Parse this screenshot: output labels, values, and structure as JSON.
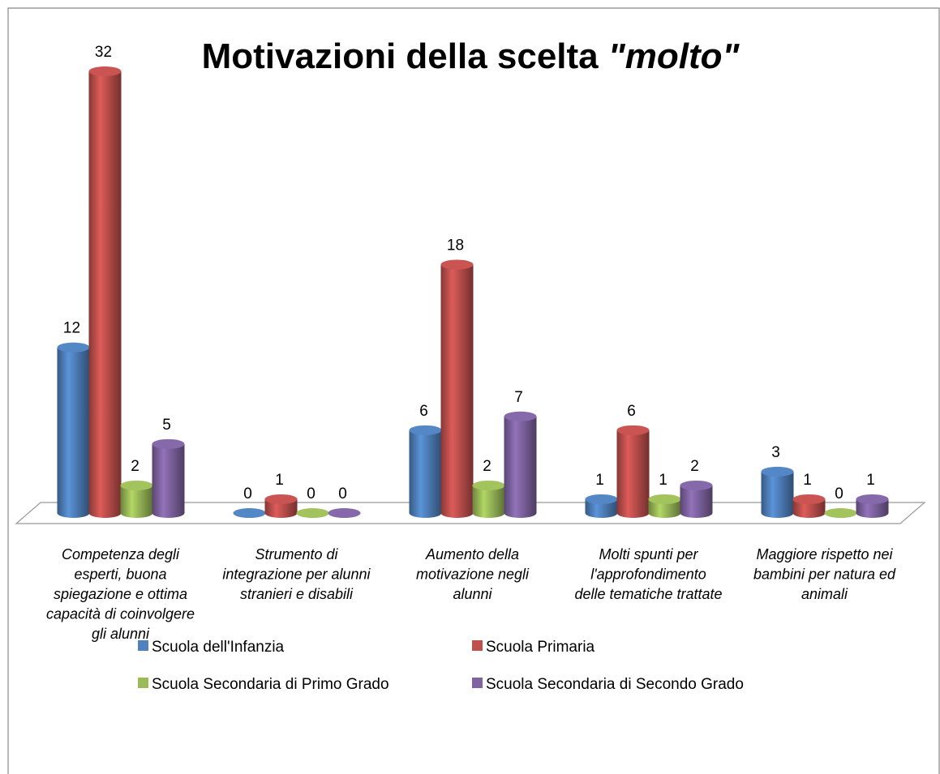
{
  "chart_data": {
    "type": "bar",
    "title": "Motivazioni della scelta \"molto\"",
    "categories": [
      "Competenza degli esperti, buona spiegazione e ottima capacità di coinvolgere gli alunni",
      "Strumento di integrazione  per alunni stranieri e disabili",
      "Aumento della motivazione negli alunni",
      "Molti spunti per l'approfondimento delle tematiche trattate",
      "Maggiore rispetto nei bambini per natura ed animali"
    ],
    "series": [
      {
        "name": "Scuola dell'Infanzia",
        "color": "#4f81bd",
        "values": [
          12,
          0,
          6,
          1,
          3
        ]
      },
      {
        "name": "Scuola Primaria",
        "color": "#c0504d",
        "values": [
          32,
          1,
          18,
          6,
          1
        ]
      },
      {
        "name": "Scuola Secondaria di Primo Grado",
        "color": "#9bbb59",
        "values": [
          2,
          0,
          2,
          1,
          0
        ]
      },
      {
        "name": "Scuola Secondaria di Secondo Grado",
        "color": "#8064a2",
        "values": [
          5,
          0,
          7,
          2,
          1
        ]
      }
    ],
    "legend": "bottom"
  }
}
